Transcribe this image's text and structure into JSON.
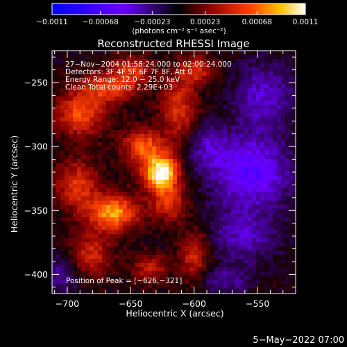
{
  "chart_data": {
    "type": "heatmap",
    "title": "Reconstructed RHESSI Image",
    "xlabel": "Heliocentric X (arcsec)",
    "ylabel": "Heliocentric Y (arcsec)",
    "xlim": [
      -712,
      -520
    ],
    "ylim": [
      -415,
      -225
    ],
    "x_ticks": [
      -700,
      -650,
      -600,
      -550
    ],
    "x_tick_labels": [
      "−700",
      "−650",
      "−600",
      "−550"
    ],
    "y_ticks": [
      -250,
      -300,
      -350,
      -400
    ],
    "y_tick_labels": [
      "−250",
      "−300",
      "−350",
      "−400"
    ],
    "colorbar": {
      "range": [
        -0.0011,
        0.0011
      ],
      "tick_values": [
        -0.0011,
        -0.00068,
        -0.00023,
        0.00023,
        0.00068,
        0.0011
      ],
      "tick_labels": [
        "−0.0011",
        "−0.00068",
        "−0.00023",
        "0.00023",
        "0.00068",
        "0.0011"
      ],
      "unit_label": "(photons cm⁻² s⁻¹ asec⁻²)"
    },
    "annotations": [
      "27−Nov−2004 01:58:24.000 to 02:00:24.000",
      "Detectors: 3F 4F 5F 6F 7F 8F, Att 0",
      "Energy Range: 12.0 − 25.0 keV",
      "Clean    Total counts: 2.29E+03"
    ],
    "peak_label": "Position of Peak = [−626,−321]",
    "peak_position": [
      -626,
      -321
    ],
    "peak_value": 0.0011,
    "sources": [
      {
        "x": -626,
        "y": -321,
        "value": 0.0011,
        "rx": 10,
        "ry": 10
      },
      {
        "x": -664,
        "y": -352,
        "value": 0.00082,
        "rx": 14,
        "ry": 10
      },
      {
        "x": -640,
        "y": -300,
        "value": 0.00062,
        "rx": 12,
        "ry": 10
      },
      {
        "x": -690,
        "y": -275,
        "value": 0.0006,
        "rx": 14,
        "ry": 12
      },
      {
        "x": -668,
        "y": -255,
        "value": 0.00052,
        "rx": 16,
        "ry": 8
      },
      {
        "x": -650,
        "y": -240,
        "value": 0.00048,
        "rx": 12,
        "ry": 8
      },
      {
        "x": -612,
        "y": -270,
        "value": 0.0005,
        "rx": 10,
        "ry": 18
      },
      {
        "x": -598,
        "y": -240,
        "value": 0.00046,
        "rx": 10,
        "ry": 8
      },
      {
        "x": -620,
        "y": -345,
        "value": 0.00048,
        "rx": 10,
        "ry": 10
      },
      {
        "x": -692,
        "y": -330,
        "value": 0.0005,
        "rx": 12,
        "ry": 14
      },
      {
        "x": -682,
        "y": -385,
        "value": 0.00046,
        "rx": 12,
        "ry": 12
      },
      {
        "x": -600,
        "y": -385,
        "value": 0.00046,
        "rx": 8,
        "ry": 14
      },
      {
        "x": -635,
        "y": -395,
        "value": 0.0004,
        "rx": 10,
        "ry": 8
      },
      {
        "x": -555,
        "y": -320,
        "value": -0.0006,
        "rx": 22,
        "ry": 20
      },
      {
        "x": -560,
        "y": -370,
        "value": -0.00036,
        "rx": 18,
        "ry": 14
      },
      {
        "x": -545,
        "y": -260,
        "value": -0.0004,
        "rx": 16,
        "ry": 18
      },
      {
        "x": -590,
        "y": -300,
        "value": -0.0003,
        "rx": 12,
        "ry": 12
      },
      {
        "x": -705,
        "y": -400,
        "value": -0.0003,
        "rx": 10,
        "ry": 12
      },
      {
        "x": -575,
        "y": -405,
        "value": -0.00028,
        "rx": 14,
        "ry": 8
      }
    ]
  },
  "footer_date": "5−May−2022 07:00"
}
